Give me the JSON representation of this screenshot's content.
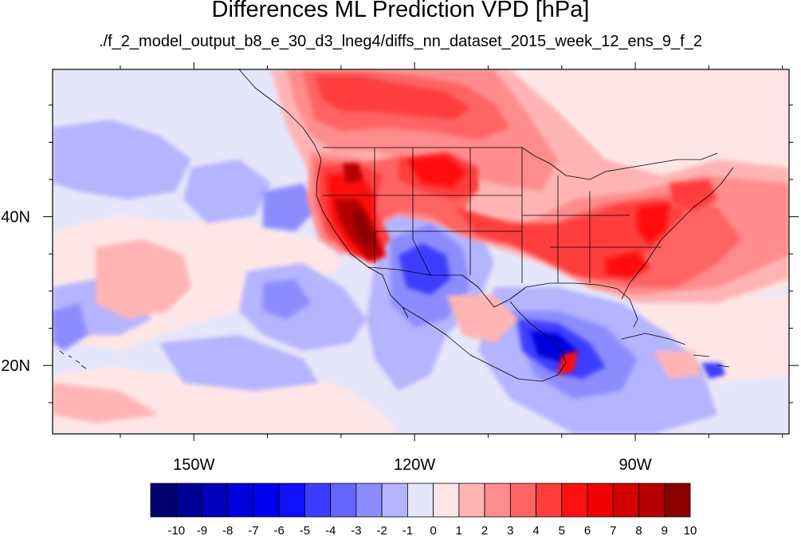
{
  "title": "Differences ML Prediction VPD [hPa]",
  "subtitle": "./f_2_model_output_b8_e_30_d3_lneg4/diffs_nn_dataset_2015_week_12_ens_9_f_2",
  "map": {
    "lon_range": [
      -169.2,
      -69.1
    ],
    "lat_range": [
      10.8,
      59.8
    ],
    "lon_ticks": [
      {
        "value": -150,
        "label": "150W"
      },
      {
        "value": -120,
        "label": "120W"
      },
      {
        "value": -90,
        "label": "90W"
      }
    ],
    "lat_ticks": [
      {
        "value": 40,
        "label": "40N"
      },
      {
        "value": 20,
        "label": "20N"
      }
    ],
    "minor_lon_step": 10,
    "minor_lat_step": 5
  },
  "colorbar": {
    "labels": [
      "-10",
      "-9",
      "-8",
      "-7",
      "-6",
      "-5",
      "-4",
      "-3",
      "-2",
      "-1",
      "0",
      "1",
      "2",
      "3",
      "4",
      "5",
      "6",
      "7",
      "8",
      "9",
      "10"
    ],
    "colors": [
      "#00006e",
      "#000096",
      "#0000be",
      "#0000dc",
      "#0000f0",
      "#1010ff",
      "#3c3cff",
      "#6464ff",
      "#8c8cff",
      "#b4b4ff",
      "#e6e6fa",
      "#ffe6e6",
      "#ffb4b4",
      "#ff8c8c",
      "#ff6464",
      "#ff3c3c",
      "#ff1010",
      "#f00000",
      "#d20000",
      "#b40000",
      "#8c0000"
    ]
  },
  "field_colors": {
    "neutral": "#e6e6fa",
    "light_pos": "#ffe6e6",
    "pos1": "#ffb4b4",
    "pos2": "#ff8c8c",
    "pos3": "#ff6464",
    "pos4": "#ff3c3c",
    "pos5": "#ff1010",
    "pos6": "#d20000",
    "pos7": "#b40000",
    "pos8": "#8c0000",
    "neg1": "#b4b4ff",
    "neg2": "#8c8cff",
    "neg3": "#6464ff",
    "neg4": "#3c3cff",
    "neg5": "#1010ff",
    "neg6": "#0000dc"
  }
}
